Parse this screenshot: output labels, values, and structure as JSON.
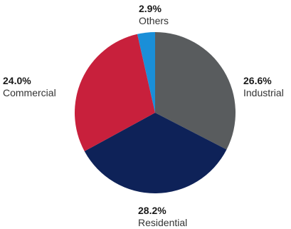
{
  "chart_data": {
    "type": "pie",
    "title": "",
    "slices": [
      {
        "label": "Industrial",
        "value": 26.6,
        "value_label": "26.6%",
        "color": "#595c5e"
      },
      {
        "label": "Residential",
        "value": 28.2,
        "value_label": "28.2%",
        "color": "#0e2258"
      },
      {
        "label": "Commercial",
        "value": 24.0,
        "value_label": "24.0%",
        "color": "#c8203c"
      },
      {
        "label": "Others",
        "value": 2.9,
        "value_label": "2.9%",
        "color": "#1a8fd8"
      }
    ],
    "start_angle": "12 o'clock",
    "direction": "clockwise",
    "legend": "none"
  }
}
